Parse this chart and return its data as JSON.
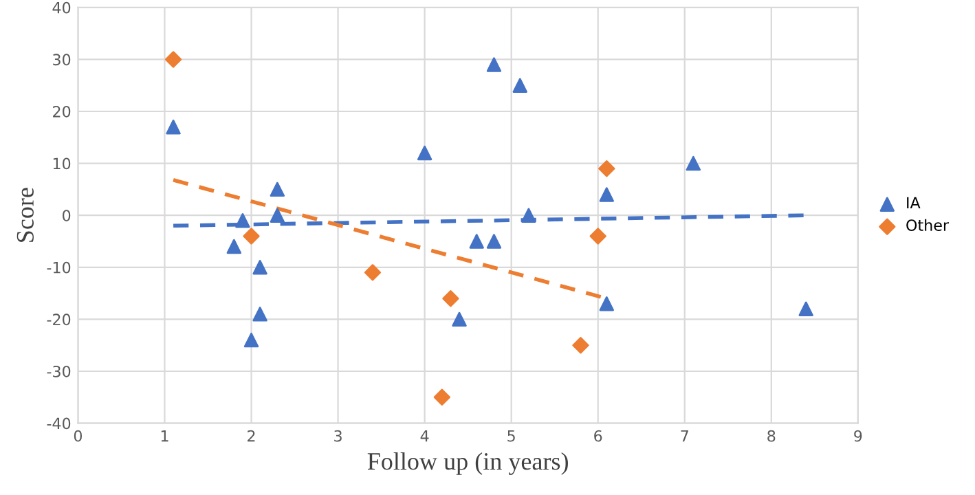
{
  "chart_data": {
    "type": "scatter",
    "xlabel": "Follow up (in years)",
    "ylabel": "Score",
    "xlim": [
      0,
      9
    ],
    "ylim": [
      -40,
      40
    ],
    "xticks": [
      0,
      1,
      2,
      3,
      4,
      5,
      6,
      7,
      8,
      9
    ],
    "yticks": [
      -40,
      -30,
      -20,
      -10,
      0,
      10,
      20,
      30,
      40
    ],
    "grid": true,
    "legend": "right",
    "series": [
      {
        "name": "IA",
        "color": "#4472c4",
        "marker": "triangle",
        "x": [
          1.1,
          1.8,
          1.9,
          2.0,
          2.1,
          2.1,
          2.3,
          2.3,
          4.0,
          4.4,
          4.6,
          4.8,
          4.8,
          5.1,
          5.2,
          6.1,
          6.1,
          7.1,
          8.4
        ],
        "values": [
          17,
          -6,
          -1,
          -24,
          -10,
          -19,
          5,
          0,
          12,
          -20,
          -5,
          -5,
          29,
          25,
          0,
          4,
          -17,
          10,
          -18
        ]
      },
      {
        "name": "Other",
        "color": "#ed7d31",
        "marker": "diamond",
        "x": [
          1.1,
          2.0,
          3.4,
          4.2,
          4.3,
          5.8,
          6.0,
          6.1
        ],
        "values": [
          30,
          -4,
          -11,
          -35,
          -16,
          -25,
          -4,
          9
        ]
      },
      {
        "type": "line",
        "color": "#4472c4",
        "line_style": "dashed",
        "marker": "none",
        "x": [
          1.1,
          8.4
        ],
        "values": [
          -2,
          0
        ]
      },
      {
        "type": "line",
        "color": "#ed7d31",
        "line_style": "dashed",
        "marker": "none",
        "x": [
          1.1,
          6.1
        ],
        "values": [
          6.8,
          -16
        ]
      }
    ]
  }
}
